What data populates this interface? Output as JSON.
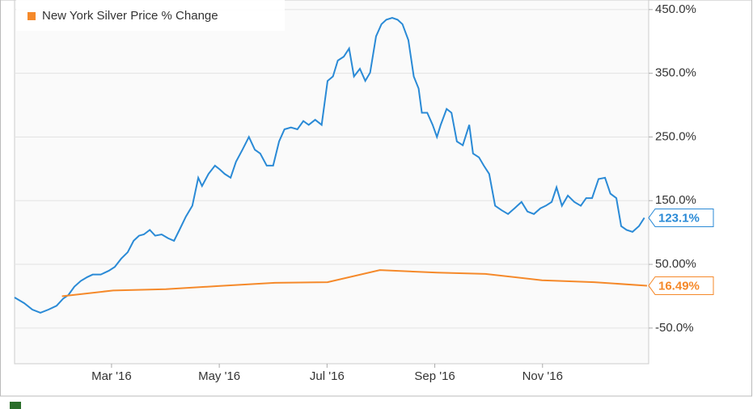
{
  "chart_data": {
    "type": "line",
    "xlim": [
      0.2,
      11.97
    ],
    "xticks": [
      {
        "value": 2,
        "label": "Mar '16"
      },
      {
        "value": 4,
        "label": "May '16"
      },
      {
        "value": 6,
        "label": "Jul '16"
      },
      {
        "value": 8,
        "label": "Sep '16"
      },
      {
        "value": 10,
        "label": "Nov '16"
      }
    ],
    "ylim": [
      -106,
      465
    ],
    "yticks": [
      {
        "value": -50,
        "label": "-50.0%"
      },
      {
        "value": 50,
        "label": "50.00%"
      },
      {
        "value": 150,
        "label": "150.0%"
      },
      {
        "value": 250,
        "label": "250.0%"
      },
      {
        "value": 350,
        "label": "350.0%"
      },
      {
        "value": 450,
        "label": "450.0%"
      }
    ],
    "grid": true,
    "legend": "top-left",
    "series": [
      {
        "color": "#2a8ad6",
        "end_value_label": "123.1%",
        "x": [
          0.2,
          0.38,
          0.53,
          0.68,
          0.83,
          0.98,
          1.1,
          1.2,
          1.31,
          1.43,
          1.55,
          1.65,
          1.8,
          1.95,
          2.06,
          2.18,
          2.3,
          2.41,
          2.51,
          2.6,
          2.71,
          2.81,
          2.93,
          3.05,
          3.16,
          3.26,
          3.38,
          3.5,
          3.61,
          3.68,
          3.8,
          3.92,
          4.01,
          4.1,
          4.21,
          4.31,
          4.43,
          4.55,
          4.66,
          4.76,
          4.88,
          5.0,
          5.11,
          5.21,
          5.33,
          5.45,
          5.56,
          5.66,
          5.78,
          5.9,
          6.01,
          6.11,
          6.2,
          6.31,
          6.41,
          6.5,
          6.61,
          6.71,
          6.8,
          6.91,
          7.01,
          7.1,
          7.21,
          7.31,
          7.4,
          7.51,
          7.61,
          7.7,
          7.76,
          7.86,
          7.96,
          8.04,
          8.11,
          8.22,
          8.31,
          8.41,
          8.52,
          8.64,
          8.71,
          8.82,
          8.91,
          9.01,
          9.12,
          9.24,
          9.36,
          9.48,
          9.61,
          9.72,
          9.84,
          9.96,
          10.06,
          10.17,
          10.26,
          10.36,
          10.47,
          10.59,
          10.71,
          10.81,
          10.92,
          11.04,
          11.16,
          11.26,
          11.37,
          11.46,
          11.56,
          11.67,
          11.79,
          11.89
        ],
        "values": [
          -2,
          -11,
          -21,
          -26,
          -21,
          -15,
          -4,
          2,
          15,
          24,
          30,
          34,
          34,
          40,
          46,
          59,
          69,
          87,
          95,
          97,
          104,
          95,
          97,
          91,
          87,
          104,
          125,
          142,
          186,
          173,
          192,
          205,
          199,
          192,
          186,
          211,
          230,
          250,
          230,
          224,
          205,
          205,
          243,
          262,
          265,
          262,
          275,
          269,
          277,
          269,
          338,
          345,
          370,
          376,
          389,
          345,
          357,
          338,
          351,
          408,
          427,
          434,
          437,
          434,
          427,
          402,
          345,
          326,
          288,
          288,
          269,
          250,
          269,
          294,
          288,
          243,
          237,
          269,
          224,
          218,
          205,
          192,
          142,
          135,
          129,
          138,
          148,
          133,
          129,
          138,
          142,
          148,
          171,
          142,
          158,
          148,
          142,
          154,
          154,
          184,
          186,
          161,
          154,
          110,
          104,
          101,
          110,
          123.1
        ]
      },
      {
        "name": "New York Silver Price % Change",
        "color": "#f5892a",
        "end_value_label": "16.49%",
        "x": [
          1.08,
          2.03,
          3.01,
          3.98,
          5.03,
          6.01,
          6.98,
          8.04,
          8.94,
          9.99,
          10.96,
          11.94
        ],
        "values": [
          0,
          9,
          11,
          16,
          21,
          22,
          41,
          37,
          35,
          25,
          22,
          16.49
        ]
      }
    ]
  }
}
